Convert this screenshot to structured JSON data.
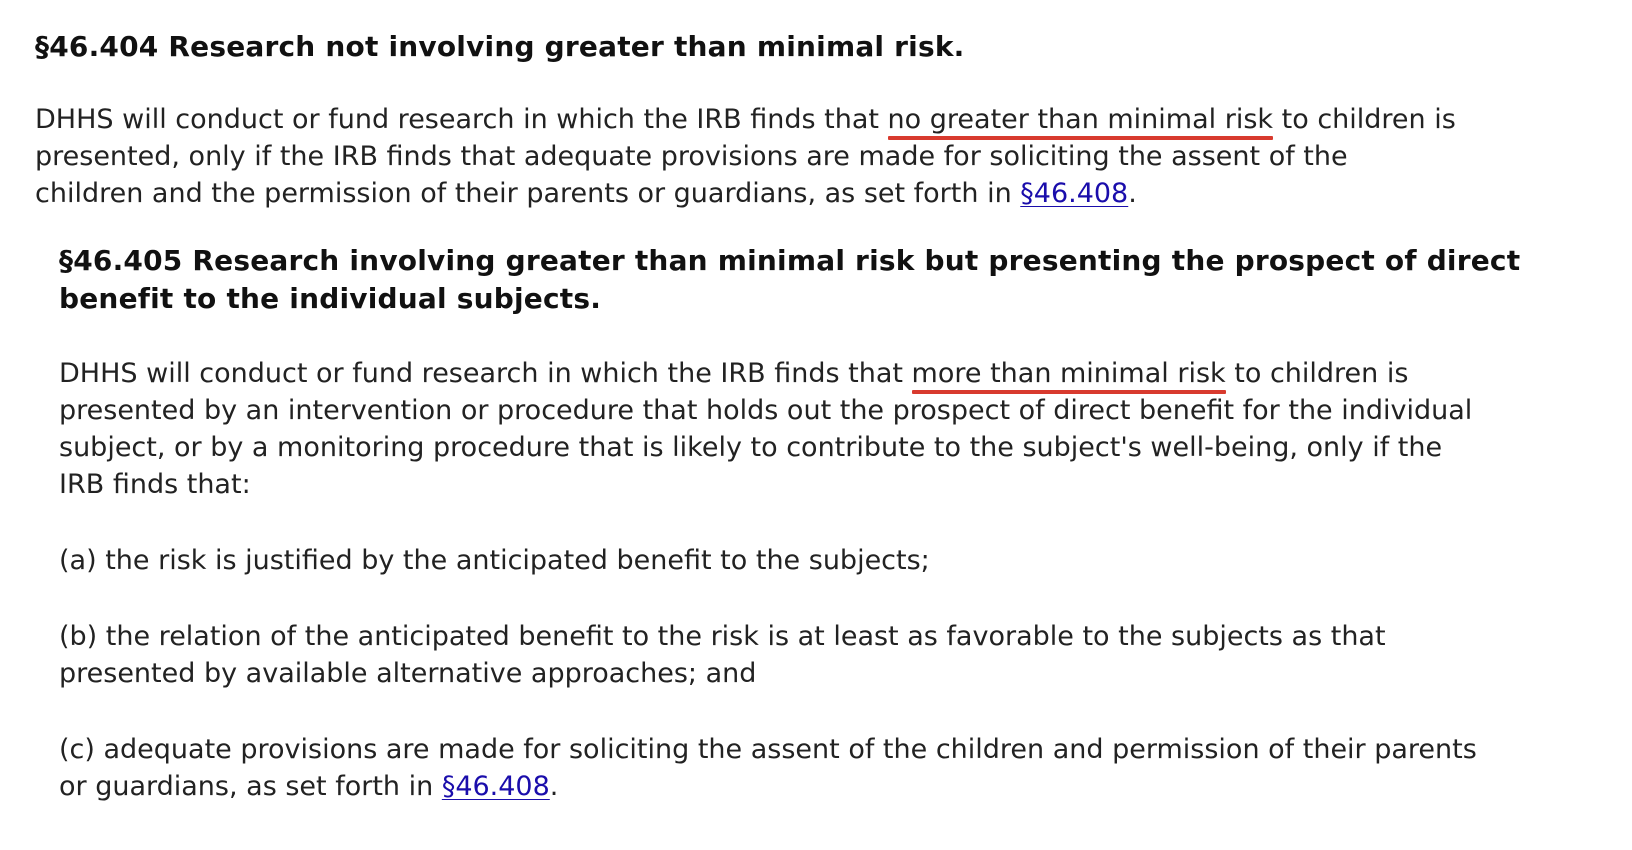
{
  "section_404": {
    "title": "§46.404 Research not involving greater than minimal risk.",
    "line1_pre": "DHHS will conduct or fund research in which the IRB finds that ",
    "line1_highlight": "no greater than minimal risk",
    "line1_post": " to children is",
    "line2": "presented, only if the IRB finds that adequate provisions are made for soliciting the assent of the",
    "line3_pre": "children and the permission of their parents or guardians, as set forth in ",
    "line3_link": "§46.408",
    "line3_post": "."
  },
  "section_405": {
    "title_line1": "§46.405 Research involving greater than minimal risk but presenting the prospect of direct",
    "title_line2": "benefit to the individual subjects.",
    "line1_pre": "DHHS will conduct or fund research in which the IRB finds that ",
    "line1_highlight": "more than minimal risk",
    "line1_post": " to children is",
    "line2": "presented by an intervention or procedure that holds out the prospect of direct benefit for the individual",
    "line3": "subject, or by a monitoring procedure that is likely to contribute to the subject's well-being, only if the",
    "line4": "IRB finds that:",
    "item_a": "(a) the risk is justified by the anticipated benefit to the subjects;",
    "item_b_line1": "(b) the relation of the anticipated benefit to the risk is at least as favorable to the subjects as that",
    "item_b_line2": "presented by available alternative approaches; and",
    "item_c_line1": "(c) adequate provisions are made for soliciting the assent of the children and permission of their parents",
    "item_c_line2_pre": "or guardians, as set forth in ",
    "item_c_link": "§46.408",
    "item_c_line2_post": "."
  },
  "colors": {
    "link": "#1a0dab",
    "highlight_underline": "#d83a2e",
    "text": "#222222"
  }
}
